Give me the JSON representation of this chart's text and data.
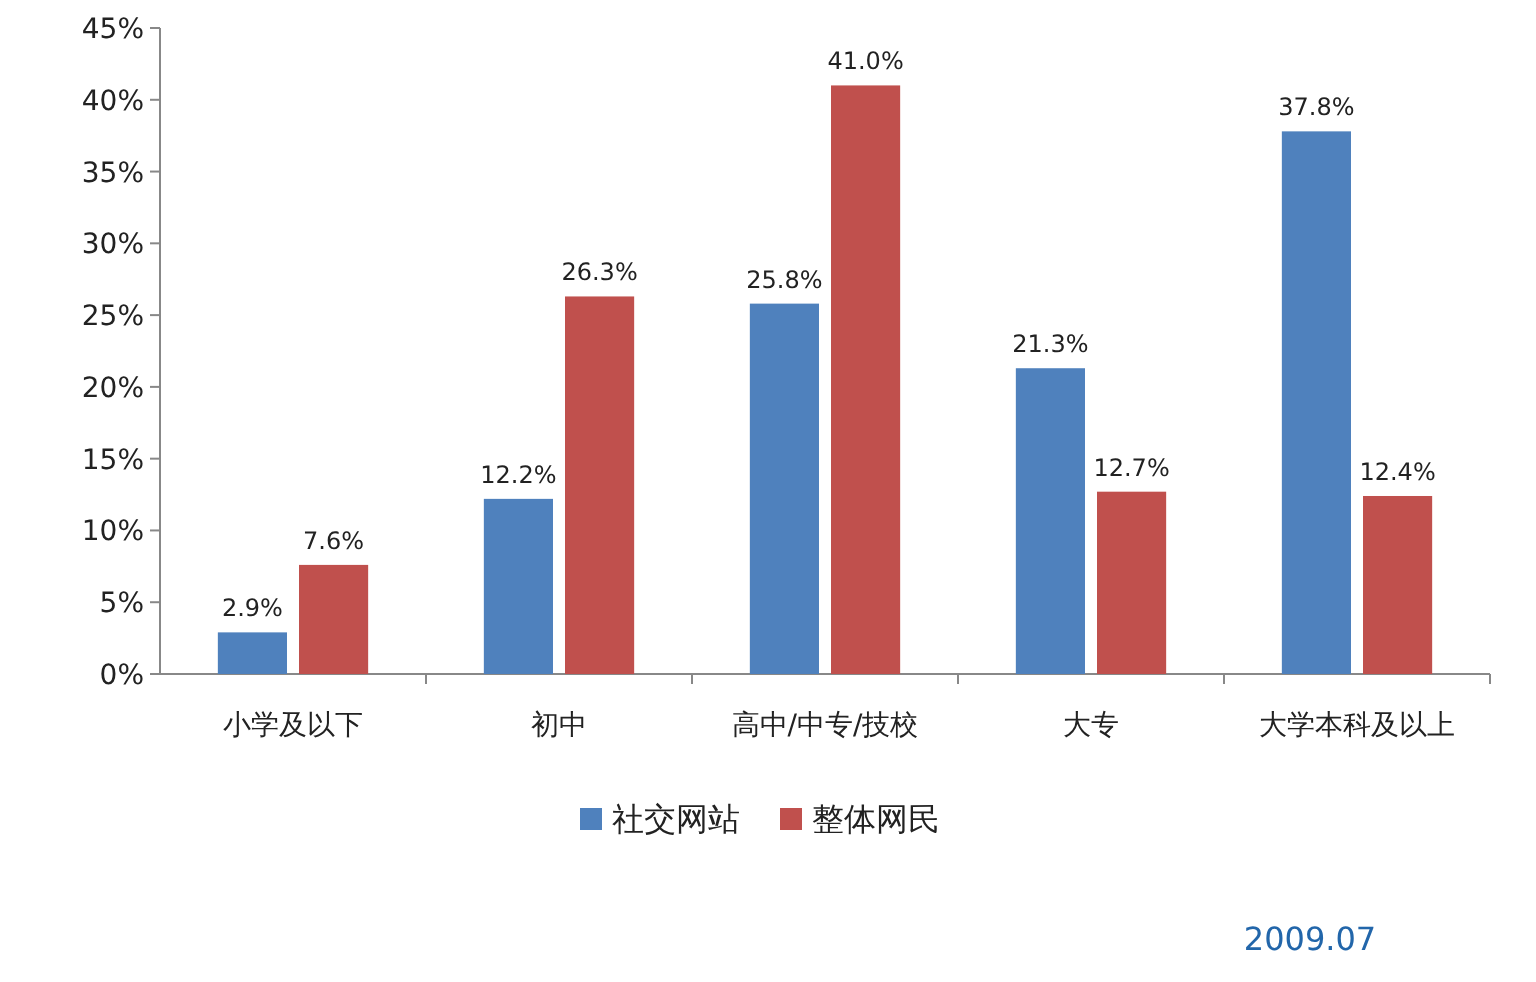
{
  "chart_data": {
    "type": "bar",
    "categories": [
      "小学及以下",
      "初中",
      "高中/中专/技校",
      "大专",
      "大学本科及以上"
    ],
    "series": [
      {
        "name": "社交网站",
        "color": "#4f81bd",
        "values": [
          2.9,
          12.2,
          25.8,
          21.3,
          37.8
        ],
        "value_labels": [
          "2.9%",
          "12.2%",
          "25.8%",
          "21.3%",
          "37.8%"
        ]
      },
      {
        "name": "整体网民",
        "color": "#c0504d",
        "values": [
          7.6,
          26.3,
          41.0,
          12.7,
          12.4
        ],
        "value_labels": [
          "7.6%",
          "26.3%",
          "41.0%",
          "12.7%",
          "12.4%"
        ]
      }
    ],
    "ylim": [
      0,
      45
    ],
    "yticks": [
      {
        "value": 0,
        "label": "0%"
      },
      {
        "value": 5,
        "label": "5%"
      },
      {
        "value": 10,
        "label": "10%"
      },
      {
        "value": 15,
        "label": "15%"
      },
      {
        "value": 20,
        "label": "20%"
      },
      {
        "value": 25,
        "label": "25%"
      },
      {
        "value": 30,
        "label": "30%"
      },
      {
        "value": 35,
        "label": "35%"
      },
      {
        "value": 40,
        "label": "40%"
      },
      {
        "value": 45,
        "label": "45%"
      }
    ],
    "grid": false,
    "legend": "bottom",
    "annotations": [
      "2009.07"
    ]
  }
}
